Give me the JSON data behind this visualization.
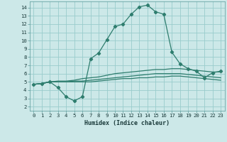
{
  "title": "",
  "xlabel": "Humidex (Indice chaleur)",
  "bg_color": "#cce8e8",
  "grid_color": "#99cccc",
  "line_color": "#2e7d6e",
  "xlim": [
    -0.5,
    23.5
  ],
  "ylim": [
    1.5,
    14.75
  ],
  "xticks": [
    0,
    1,
    2,
    3,
    4,
    5,
    6,
    7,
    8,
    9,
    10,
    11,
    12,
    13,
    14,
    15,
    16,
    17,
    18,
    19,
    20,
    21,
    22,
    23
  ],
  "yticks": [
    2,
    3,
    4,
    5,
    6,
    7,
    8,
    9,
    10,
    11,
    12,
    13,
    14
  ],
  "series": [
    [
      4.7,
      4.8,
      5.0,
      4.3,
      3.2,
      2.7,
      3.2,
      7.8,
      8.5,
      10.1,
      11.7,
      12.0,
      13.2,
      14.1,
      14.3,
      13.5,
      13.2,
      8.6,
      7.2,
      6.6,
      6.3,
      5.5,
      6.1,
      6.3
    ],
    [
      4.7,
      4.8,
      5.0,
      5.1,
      5.1,
      5.2,
      5.4,
      5.5,
      5.6,
      5.8,
      6.0,
      6.1,
      6.2,
      6.3,
      6.4,
      6.5,
      6.5,
      6.6,
      6.6,
      6.5,
      6.4,
      6.3,
      6.2,
      6.2
    ],
    [
      4.7,
      4.8,
      5.0,
      5.0,
      5.0,
      5.1,
      5.1,
      5.2,
      5.3,
      5.4,
      5.5,
      5.6,
      5.7,
      5.8,
      5.9,
      6.0,
      6.0,
      6.0,
      6.0,
      5.9,
      5.8,
      5.7,
      5.6,
      5.5
    ],
    [
      4.7,
      4.8,
      5.0,
      5.0,
      5.0,
      5.0,
      5.0,
      5.0,
      5.1,
      5.2,
      5.3,
      5.4,
      5.4,
      5.5,
      5.5,
      5.6,
      5.6,
      5.7,
      5.7,
      5.6,
      5.5,
      5.4,
      5.3,
      5.2
    ]
  ],
  "show_markers": [
    true,
    false,
    false,
    false
  ],
  "marker_style": "D",
  "marker_size": 2.2,
  "linewidth": 0.9,
  "tick_fontsize": 5.2,
  "xlabel_fontsize": 6.0
}
